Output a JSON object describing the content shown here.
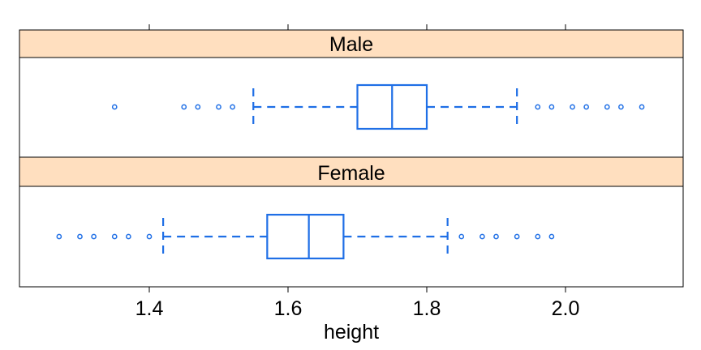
{
  "chart_data": {
    "type": "boxplot",
    "xlabel": "height",
    "ylabel": "",
    "title": "",
    "xlim": [
      1.22,
      2.16
    ],
    "x_ticks": [
      1.4,
      1.6,
      1.8,
      2.0
    ],
    "x_tick_labels": [
      "1.4",
      "1.6",
      "1.8",
      "2.0"
    ],
    "grid": false,
    "colors": {
      "box": "#1f6fe6",
      "strip": "#ffdfbf",
      "frame": "#000000"
    },
    "panels": [
      {
        "label": "Male",
        "whisker_low": 1.55,
        "q1": 1.7,
        "median": 1.75,
        "q3": 1.8,
        "whisker_high": 1.93,
        "outliers": [
          1.35,
          1.45,
          1.47,
          1.5,
          1.52,
          1.96,
          1.98,
          2.01,
          2.03,
          2.06,
          2.08,
          2.11
        ]
      },
      {
        "label": "Female",
        "whisker_low": 1.42,
        "q1": 1.57,
        "median": 1.63,
        "q3": 1.68,
        "whisker_high": 1.83,
        "outliers": [
          1.27,
          1.3,
          1.32,
          1.35,
          1.37,
          1.4,
          1.85,
          1.88,
          1.9,
          1.93,
          1.96,
          1.98
        ]
      }
    ]
  }
}
